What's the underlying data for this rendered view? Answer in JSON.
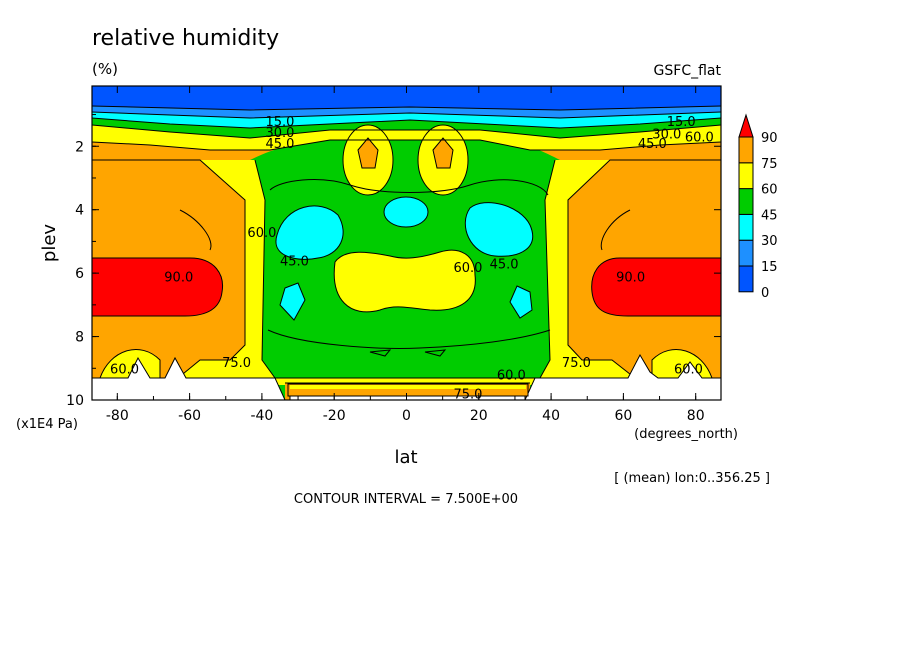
{
  "chart_data": {
    "type": "heatmap",
    "title": "relative humidity",
    "units": "(%)",
    "dataset": "GSFC_flat",
    "xlabel": "lat",
    "xunits": "(degrees_north)",
    "ylabel": "plev",
    "yunits": "(x1E4 Pa)",
    "xlim": [
      -87,
      87
    ],
    "ylim": [
      10,
      0.1
    ],
    "x_ticks": [
      -80,
      -60,
      -40,
      -20,
      0,
      20,
      40,
      60,
      80
    ],
    "x_tick_labels": [
      "-80",
      "-60",
      "-40",
      "-20",
      "0",
      "20",
      "40",
      "60",
      "80"
    ],
    "y_ticks": [
      2,
      4,
      6,
      8,
      10
    ],
    "y_tick_labels": [
      "2",
      "4",
      "6",
      "8",
      "10"
    ],
    "levels": [
      0,
      15,
      30,
      45,
      60,
      75,
      90
    ],
    "level_labels": [
      "0",
      "15",
      "30",
      "45",
      "60",
      "75",
      "90"
    ],
    "colors": [
      "#0055ff",
      "#1e90ff",
      "#00ffff",
      "#00cc00",
      "#ffff00",
      "#ffa500",
      "#ff0000"
    ],
    "contour_labels": [
      {
        "text": "15.0",
        "lat": -35,
        "plev": 1.2
      },
      {
        "text": "30.0",
        "lat": -35,
        "plev": 1.55
      },
      {
        "text": "45.0",
        "lat": -35,
        "plev": 1.9
      },
      {
        "text": "15.0",
        "lat": 76,
        "plev": 1.2
      },
      {
        "text": "30.0",
        "lat": 72,
        "plev": 1.6
      },
      {
        "text": "45.0",
        "lat": 68,
        "plev": 1.9
      },
      {
        "text": "60.0",
        "lat": 81,
        "plev": 1.7
      },
      {
        "text": "90.0",
        "lat": -63,
        "plev": 6.1
      },
      {
        "text": "90.0",
        "lat": 62,
        "plev": 6.1
      },
      {
        "text": "60.0",
        "lat": -40,
        "plev": 4.7
      },
      {
        "text": "45.0",
        "lat": -31,
        "plev": 5.6
      },
      {
        "text": "45.0",
        "lat": 27,
        "plev": 5.7
      },
      {
        "text": "60.0",
        "lat": 17,
        "plev": 5.8
      },
      {
        "text": "75.0",
        "lat": -47,
        "plev": 8.8
      },
      {
        "text": "75.0",
        "lat": 47,
        "plev": 8.8
      },
      {
        "text": "60.0",
        "lat": 29,
        "plev": 9.2
      },
      {
        "text": "75.0",
        "lat": 17,
        "plev": 9.8
      },
      {
        "text": "60.0",
        "lat": -78,
        "plev": 9.0
      },
      {
        "text": "60.0",
        "lat": 78,
        "plev": 9.0
      }
    ],
    "footer": "[ (mean) lon:0..356.25 ]",
    "contour_interval": "CONTOUR INTERVAL = 7.500E+00"
  }
}
